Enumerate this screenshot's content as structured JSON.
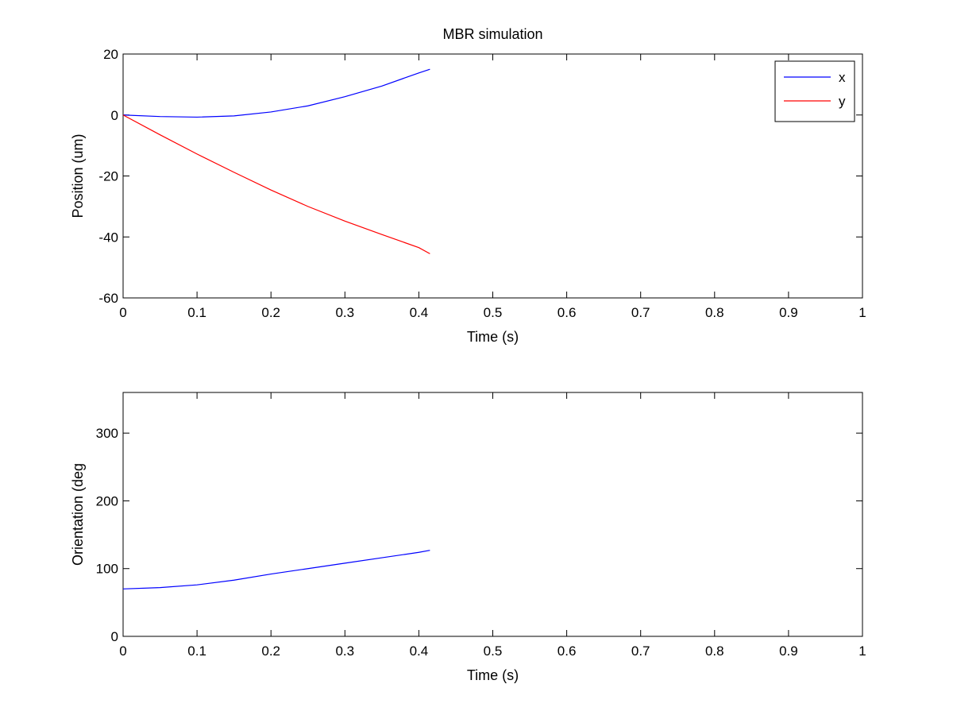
{
  "figure": {
    "title": "MBR simulation",
    "background": "#ffffff"
  },
  "chart_data": [
    {
      "type": "line",
      "title": "MBR simulation",
      "xlabel": "Time (s)",
      "ylabel": "Position (um)",
      "xlim": [
        0,
        1
      ],
      "ylim": [
        -60,
        20
      ],
      "xticks": [
        0,
        0.1,
        0.2,
        0.3,
        0.4,
        0.5,
        0.6,
        0.7,
        0.8,
        0.9,
        1
      ],
      "xtick_labels": [
        "0",
        "0.1",
        "0.2",
        "0.3",
        "0.4",
        "0.5",
        "0.6",
        "0.7",
        "0.8",
        "0.9",
        "1"
      ],
      "yticks": [
        -60,
        -40,
        -20,
        0,
        20
      ],
      "ytick_labels": [
        "-60",
        "-40",
        "-20",
        "0",
        "20"
      ],
      "grid": false,
      "legend": {
        "position": "top-right",
        "entries": [
          "x",
          "y"
        ]
      },
      "series": [
        {
          "name": "x",
          "color": "#0000ff",
          "x": [
            0,
            0.05,
            0.1,
            0.15,
            0.2,
            0.25,
            0.3,
            0.35,
            0.4,
            0.415
          ],
          "y": [
            0,
            -0.5,
            -0.7,
            -0.3,
            1.0,
            3.0,
            6.0,
            9.5,
            13.8,
            15.0
          ]
        },
        {
          "name": "y",
          "color": "#ff0000",
          "x": [
            0,
            0.05,
            0.1,
            0.15,
            0.2,
            0.25,
            0.3,
            0.35,
            0.4,
            0.415
          ],
          "y": [
            0,
            -6.5,
            -12.8,
            -18.8,
            -24.6,
            -30.0,
            -34.8,
            -39.2,
            -43.5,
            -45.5
          ]
        }
      ]
    },
    {
      "type": "line",
      "title": "",
      "xlabel": "Time (s)",
      "ylabel": "Orientation (deg",
      "xlim": [
        0,
        1
      ],
      "ylim": [
        0,
        360
      ],
      "xticks": [
        0,
        0.1,
        0.2,
        0.3,
        0.4,
        0.5,
        0.6,
        0.7,
        0.8,
        0.9,
        1
      ],
      "xtick_labels": [
        "0",
        "0.1",
        "0.2",
        "0.3",
        "0.4",
        "0.5",
        "0.6",
        "0.7",
        "0.8",
        "0.9",
        "1"
      ],
      "yticks": [
        0,
        100,
        200,
        300
      ],
      "ytick_labels": [
        "0",
        "100",
        "200",
        "300"
      ],
      "grid": false,
      "series": [
        {
          "name": "orientation",
          "color": "#0000ff",
          "x": [
            0,
            0.05,
            0.1,
            0.15,
            0.2,
            0.25,
            0.3,
            0.35,
            0.4,
            0.415
          ],
          "y": [
            70,
            72,
            76,
            83,
            92,
            100,
            108,
            116,
            124,
            127
          ]
        }
      ]
    }
  ]
}
